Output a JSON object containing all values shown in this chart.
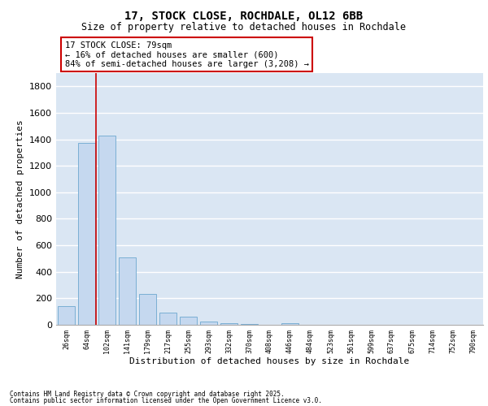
{
  "title_line1": "17, STOCK CLOSE, ROCHDALE, OL12 6BB",
  "title_line2": "Size of property relative to detached houses in Rochdale",
  "xlabel": "Distribution of detached houses by size in Rochdale",
  "ylabel": "Number of detached properties",
  "footnote1": "Contains HM Land Registry data © Crown copyright and database right 2025.",
  "footnote2": "Contains public sector information licensed under the Open Government Licence v3.0.",
  "annotation_line1": "17 STOCK CLOSE: 79sqm",
  "annotation_line2": "← 16% of detached houses are smaller (600)",
  "annotation_line3": "84% of semi-detached houses are larger (3,208) →",
  "categories": [
    "26sqm",
    "64sqm",
    "102sqm",
    "141sqm",
    "179sqm",
    "217sqm",
    "255sqm",
    "293sqm",
    "332sqm",
    "370sqm",
    "408sqm",
    "446sqm",
    "484sqm",
    "523sqm",
    "561sqm",
    "599sqm",
    "637sqm",
    "675sqm",
    "714sqm",
    "752sqm",
    "790sqm"
  ],
  "values": [
    140,
    1370,
    1430,
    510,
    230,
    95,
    60,
    25,
    15,
    8,
    1,
    10,
    0,
    0,
    0,
    0,
    0,
    0,
    0,
    0,
    0
  ],
  "bar_color": "#c5d8ef",
  "bar_edge_color": "#7aafd4",
  "redline_x": 1.45,
  "ylim": [
    0,
    1900
  ],
  "yticks": [
    0,
    200,
    400,
    600,
    800,
    1000,
    1200,
    1400,
    1600,
    1800
  ],
  "bg_color": "#dae6f3",
  "grid_color": "#ffffff",
  "fig_bg_color": "#ffffff",
  "annotation_box_color": "#ffffff",
  "annotation_box_edge": "#cc0000",
  "redline_color": "#cc0000"
}
